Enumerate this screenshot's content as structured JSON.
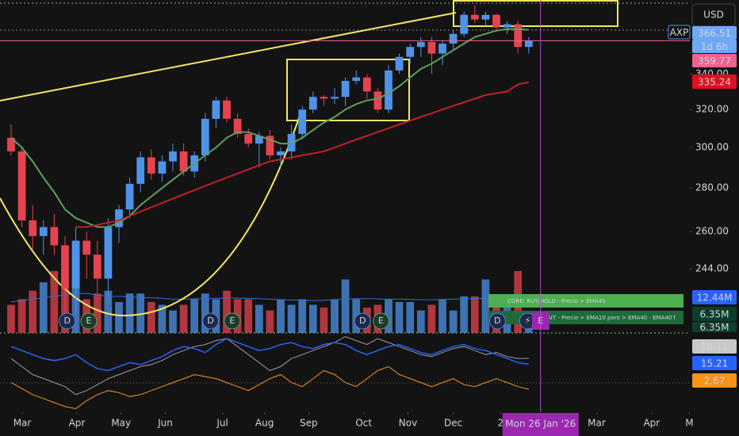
{
  "chart_data": {
    "type": "candlestick",
    "symbol": "AXP",
    "currency": "USD",
    "countdown": "1d 6h",
    "log_scale": true,
    "xlim": [
      -1.03,
      62.94
    ],
    "ylim": [
      218.8,
      385.6
    ],
    "xticks": [
      {
        "value": 1.03,
        "label": "Mar"
      },
      {
        "value": 6.1,
        "label": "Apr"
      },
      {
        "value": 10.2,
        "label": "May"
      },
      {
        "value": 14.3,
        "label": "Jun"
      },
      {
        "value": 19.6,
        "label": "Jul"
      },
      {
        "value": 23.5,
        "label": "Aug"
      },
      {
        "value": 27.6,
        "label": "Sep"
      },
      {
        "value": 32.7,
        "label": "Oct"
      },
      {
        "value": 36.8,
        "label": "Nov"
      },
      {
        "value": 41.0,
        "label": "Dec"
      },
      {
        "value": 45.4,
        "label": "2"
      },
      {
        "value": 54.3,
        "label": "Mar"
      },
      {
        "value": 59.4,
        "label": "Apr"
      },
      {
        "value": 62.9,
        "label": "M"
      }
    ],
    "yticks": [
      {
        "value": 244,
        "label": "244.00"
      },
      {
        "value": 260,
        "label": "260.00"
      },
      {
        "value": 280,
        "label": "280.00"
      },
      {
        "value": 300,
        "label": "300.00"
      },
      {
        "value": 320,
        "label": "320.00"
      },
      {
        "value": 340,
        "label": "340.00"
      }
    ],
    "up_color": "#4f93e8",
    "down_color": "#e5434f",
    "open": [
      305,
      298,
      265,
      258,
      262,
      254,
      236,
      256,
      250,
      240,
      262,
      270,
      282,
      295,
      287,
      293,
      298,
      288,
      296,
      315,
      325,
      315,
      307,
      302,
      306,
      296,
      298,
      307,
      320,
      327,
      326,
      327,
      336,
      338,
      330,
      320,
      342,
      350,
      356,
      359,
      352,
      358,
      364,
      376,
      373,
      376,
      368,
      370,
      356
    ],
    "high": [
      312,
      300,
      272,
      265,
      268,
      258,
      262,
      260,
      256,
      266,
      272,
      285,
      298,
      299,
      296,
      302,
      302,
      298,
      318,
      327,
      327,
      318,
      310,
      308,
      309,
      300,
      312,
      322,
      330,
      328,
      332,
      338,
      342,
      340,
      332,
      345,
      352,
      358,
      362,
      362,
      360,
      366,
      378,
      382,
      378,
      377,
      372,
      372,
      362
    ],
    "low": [
      296,
      262,
      252,
      250,
      250,
      225,
      226,
      240,
      234,
      232,
      255,
      266,
      278,
      284,
      283,
      288,
      286,
      285,
      293,
      310,
      313,
      305,
      300,
      290,
      294,
      290,
      294,
      304,
      318,
      322,
      323,
      322,
      334,
      326,
      318,
      318,
      340,
      346,
      350,
      340,
      345,
      354,
      362,
      371,
      369,
      366,
      364,
      352,
      352
    ],
    "close": [
      298,
      265,
      258,
      262,
      254,
      236,
      256,
      250,
      240,
      262,
      270,
      282,
      295,
      287,
      293,
      298,
      288,
      296,
      315,
      325,
      315,
      307,
      302,
      306,
      296,
      298,
      307,
      320,
      327,
      326,
      327,
      336,
      338,
      330,
      320,
      342,
      350,
      356,
      359,
      352,
      358,
      364,
      376,
      373,
      376,
      368,
      370,
      356,
      359.77
    ],
    "overlays": [
      {
        "color": "#5f9e5f",
        "values": [
          305,
          300,
          293,
          285,
          278,
          270,
          266,
          264,
          262,
          262,
          264,
          267,
          272,
          276,
          280,
          284,
          288,
          292,
          296,
          300,
          305,
          308,
          308,
          306,
          304,
          302,
          302,
          305,
          309,
          313,
          316,
          320,
          323,
          325,
          326,
          329,
          333,
          338,
          343,
          346,
          350,
          354,
          358,
          362,
          364,
          366,
          367,
          367,
          366.51
        ]
      },
      {
        "color": "#c0202a",
        "values": [
          null,
          null,
          null,
          null,
          null,
          null,
          262,
          262,
          263,
          264,
          265,
          267,
          269,
          271,
          273,
          275,
          277,
          279,
          281,
          283,
          285,
          287,
          289,
          291,
          293,
          294,
          295,
          296,
          297,
          298,
          300,
          302,
          304,
          306,
          308,
          310,
          312,
          314,
          316,
          318,
          320,
          322,
          324,
          326,
          328,
          329,
          330,
          334,
          335.24
        ]
      }
    ],
    "volume": {
      "ylim": [
        0,
        30
      ],
      "values": [
        10,
        12,
        15,
        18,
        22,
        16,
        30,
        12,
        14,
        15,
        11,
        14,
        14,
        11,
        10,
        8,
        10,
        12,
        14,
        12,
        15,
        12,
        12,
        10,
        8,
        12,
        10,
        12,
        10,
        9,
        12,
        19,
        12,
        9,
        10,
        12,
        11,
        11,
        8,
        10,
        12,
        8,
        13,
        13,
        19,
        9,
        10,
        22,
        6.35
      ],
      "last_label": "6.35M",
      "ma_color": "#2f6fd6",
      "ma": [
        11,
        11.5,
        12,
        12.5,
        13,
        13.5,
        14,
        14,
        13.5,
        13,
        13,
        12.8,
        12.6,
        12.5,
        12.3,
        12,
        12,
        12.1,
        12.2,
        12.3,
        12.4,
        12.4,
        12.3,
        12.2,
        12,
        11.8,
        11.7,
        11.6,
        11.5,
        11.6,
        11.8,
        12,
        12.2,
        12.2,
        12.1,
        12,
        12,
        11.9,
        11.8,
        11.8,
        11.9,
        12,
        12.1,
        12.2,
        12.3,
        12.3,
        12.4,
        12.4,
        12.44
      ],
      "ma_label": "12.44M"
    },
    "indicator": {
      "ylim": [
        -8,
        30
      ],
      "series": [
        {
          "color": "#9e9e9e",
          "values": [
            18,
            14,
            10,
            8,
            6,
            4,
            0,
            2,
            5,
            8,
            10,
            12,
            14,
            15,
            17,
            20,
            22,
            24,
            25,
            27,
            28,
            24,
            20,
            16,
            12,
            14,
            18,
            20,
            22,
            24,
            26,
            29,
            27,
            25,
            28,
            26,
            24,
            22,
            20,
            19,
            21,
            23,
            24,
            22,
            20,
            21,
            19,
            18,
            18.11
          ]
        },
        {
          "color": "#2962ff",
          "values": [
            24,
            22,
            20,
            18,
            17,
            18,
            20,
            16,
            13,
            12,
            14,
            16,
            15,
            17,
            19,
            22,
            24,
            23,
            21,
            25,
            28,
            26,
            24,
            22,
            23,
            25,
            26,
            24,
            23,
            25,
            26,
            25,
            22,
            20,
            22,
            24,
            25,
            23,
            21,
            20,
            22,
            24,
            25,
            23,
            22,
            20,
            18,
            16,
            15.21
          ]
        },
        {
          "color": "#f7931a",
          "values": [
            6,
            3,
            0,
            -2,
            -4,
            -6,
            -7,
            -3,
            0,
            2,
            1,
            -1,
            0,
            2,
            4,
            6,
            8,
            10,
            9,
            8,
            6,
            4,
            2,
            5,
            8,
            10,
            6,
            4,
            8,
            12,
            10,
            6,
            4,
            8,
            12,
            14,
            10,
            8,
            6,
            4,
            6,
            8,
            5,
            4,
            6,
            8,
            6,
            4,
            2.67
          ]
        }
      ]
    },
    "crosshair": {
      "x": 49.1,
      "label": "Mon 26 Jan '26"
    },
    "events": [
      {
        "x": 5.2,
        "label": "D"
      },
      {
        "x": 7.2,
        "label": "E"
      },
      {
        "x": 18.5,
        "label": "D"
      },
      {
        "x": 20.5,
        "label": "E"
      },
      {
        "x": 32.6,
        "label": "D"
      },
      {
        "x": 34.3,
        "label": "E"
      },
      {
        "x": 45.1,
        "label": "D"
      },
      {
        "x": 47.9,
        "label": "⚡"
      },
      {
        "x": 49.1,
        "label": "E"
      }
    ],
    "signals": [
      "CORE: BUY/HOLD - Precio > EMA40",
      "AIT - Precio > EMA10 pero > EMA40 - EMA40↑"
    ]
  }
}
